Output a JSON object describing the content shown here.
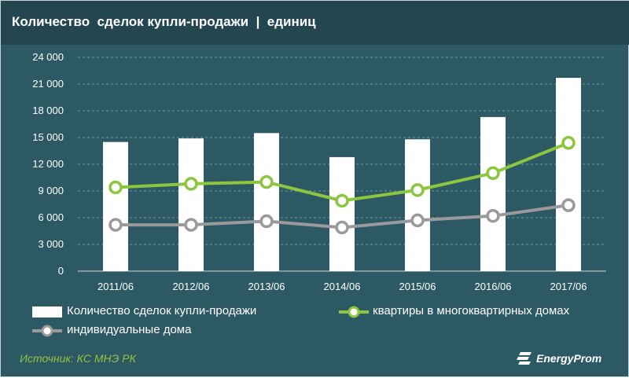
{
  "title": "Количество  сделок купли-продажи  |  единиц",
  "source": "Источник: КС МНЭ РК",
  "logo": "EnergyProm",
  "colors": {
    "bar": "#ffffff",
    "flats_line": "#8cc63f",
    "houses_line": "#9a9a9a",
    "background": "#2d5965"
  },
  "chart_data": {
    "type": "bar+line",
    "categories": [
      "2011/06",
      "2012/06",
      "2013/06",
      "2014/06",
      "2015/06",
      "2016/06",
      "2017/06"
    ],
    "y_ticks": [
      "0",
      "3 000",
      "6 000",
      "9 000",
      "12 000",
      "15 000",
      "18 000",
      "21 000",
      "24 000"
    ],
    "ylim": [
      0,
      24000
    ],
    "grid": true,
    "series": [
      {
        "name": "Количество сделок купли-продажи",
        "type": "bar",
        "values": [
          14500,
          14900,
          15500,
          12800,
          14800,
          17300,
          21700
        ]
      },
      {
        "name": "квартиры в многоквартирных домах",
        "type": "line",
        "values": [
          9400,
          9800,
          10000,
          7900,
          9100,
          11000,
          14400
        ]
      },
      {
        "name": "индивидуальные дома",
        "type": "line",
        "values": [
          5200,
          5200,
          5600,
          4900,
          5700,
          6200,
          7400
        ]
      }
    ]
  }
}
